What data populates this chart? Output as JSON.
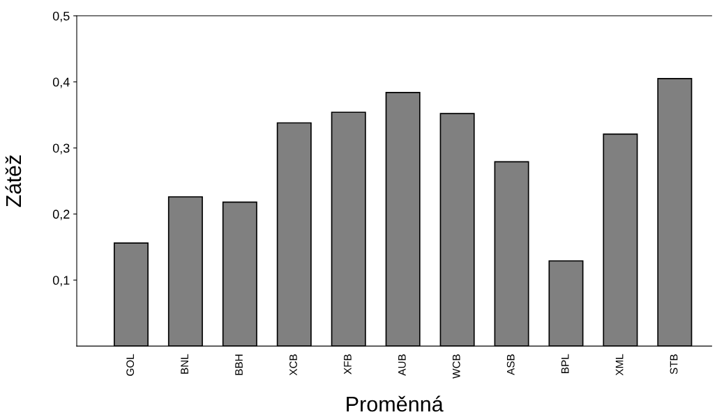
{
  "chart_data": {
    "type": "bar",
    "xlabel": "Proměnná",
    "ylabel": "Zátěž",
    "categories": [
      "GOL",
      "BNL",
      "BBH",
      "XCB",
      "XFB",
      "AUB",
      "WCB",
      "ASB",
      "BPL",
      "XML",
      "STB"
    ],
    "values": [
      0.156,
      0.226,
      0.218,
      0.338,
      0.354,
      0.384,
      0.352,
      0.279,
      0.129,
      0.321,
      0.405
    ],
    "color": "#808080",
    "ylim": [
      0,
      0.5
    ],
    "yticks": [
      {
        "value": 0.1,
        "label": "0,1"
      },
      {
        "value": 0.2,
        "label": "0,2"
      },
      {
        "value": 0.3,
        "label": "0,3"
      },
      {
        "value": 0.4,
        "label": "0,4"
      },
      {
        "value": 0.5,
        "label": "0,5"
      }
    ],
    "grid": false
  }
}
